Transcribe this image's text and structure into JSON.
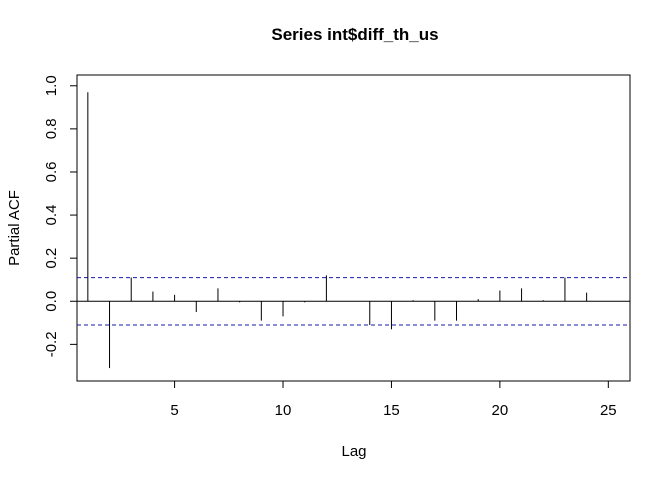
{
  "chart_data": {
    "type": "bar",
    "title": "Series  int$diff_th_us",
    "xlabel": "Lag",
    "ylabel": "Partial ACF",
    "xlim": [
      0.5,
      26.0
    ],
    "ylim": [
      -0.37,
      1.05
    ],
    "x_ticks": [
      5,
      10,
      15,
      20,
      25
    ],
    "y_ticks": [
      -0.2,
      0.0,
      0.2,
      0.4,
      0.6,
      0.8,
      1.0
    ],
    "y_tick_labels": [
      "-0.2",
      "0.0",
      "0.2",
      "0.4",
      "0.6",
      "0.8",
      "1.0"
    ],
    "lags": [
      1,
      2,
      3,
      4,
      5,
      6,
      7,
      8,
      9,
      10,
      11,
      12,
      13,
      14,
      15,
      16,
      17,
      18,
      19,
      20,
      21,
      22,
      23,
      24
    ],
    "values": [
      0.97,
      -0.31,
      0.11,
      0.045,
      0.03,
      -0.05,
      0.06,
      -0.005,
      -0.09,
      -0.07,
      -0.005,
      0.12,
      0.0,
      -0.11,
      -0.13,
      0.005,
      -0.09,
      -0.09,
      0.01,
      0.05,
      0.06,
      0.005,
      0.11,
      0.04
    ],
    "confidence_limit": 0.11,
    "line_color": "#000000",
    "ci_color": "#1a1aa6",
    "grid": false,
    "legend": "none"
  }
}
